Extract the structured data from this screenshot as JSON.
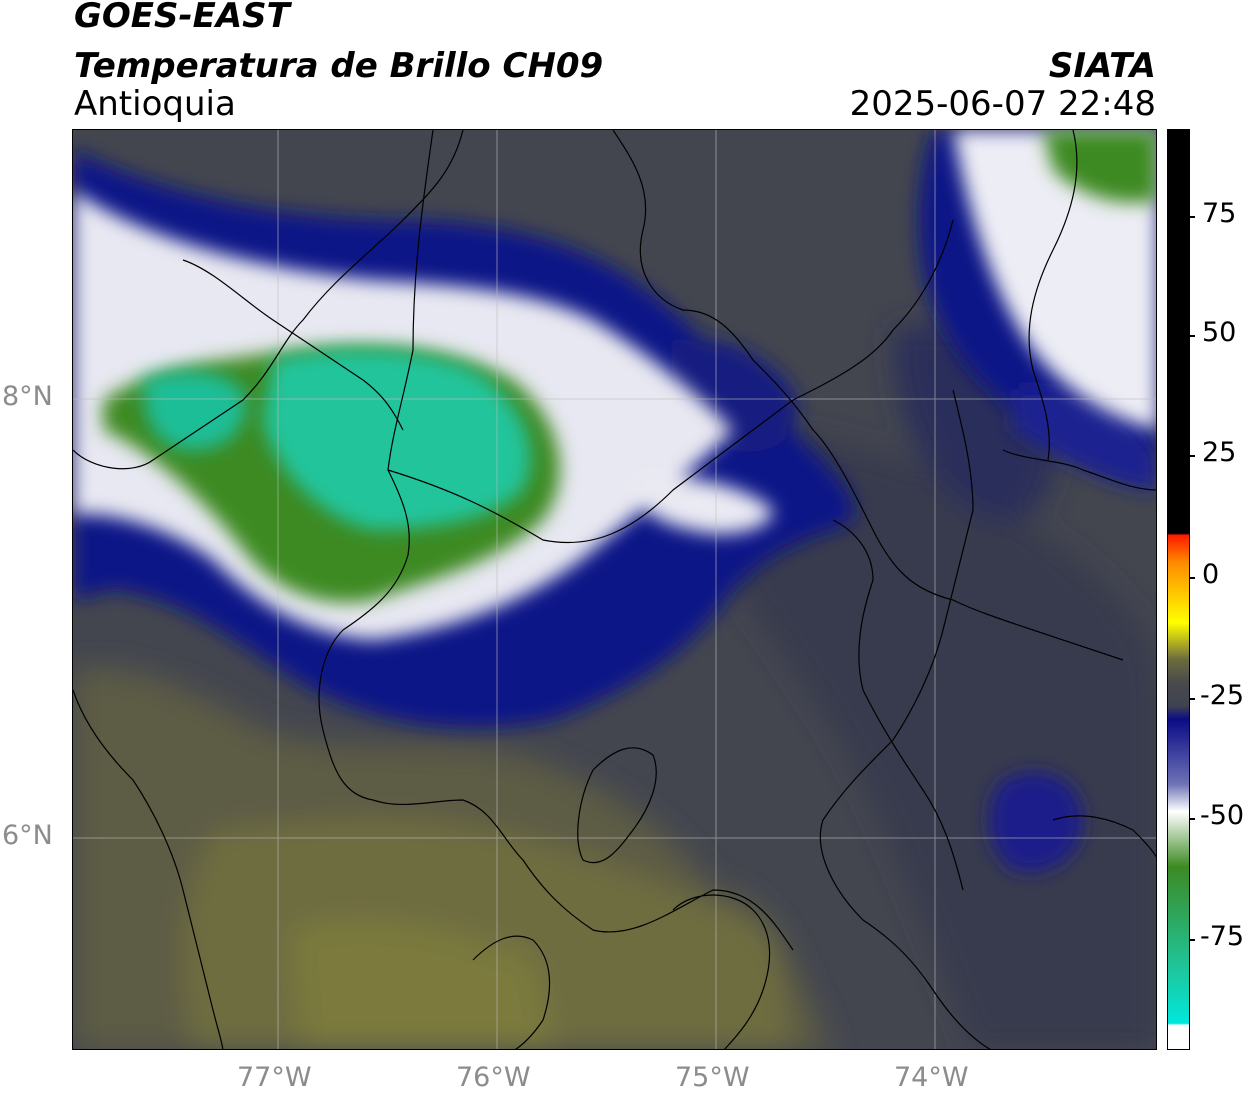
{
  "header": {
    "satellite": "GOES-EAST",
    "product": "Temperatura de Brillo CH09",
    "region": "Antioquia",
    "agency": "SIATA",
    "datetime": "2025-06-07 22:48"
  },
  "map": {
    "lat_labels": [
      "8°N",
      "6°N"
    ],
    "lon_labels": [
      "77°W",
      "76°W",
      "75°W",
      "74°W"
    ]
  },
  "colorbar": {
    "ticks": [
      "75",
      "50",
      "25",
      "0",
      "-25",
      "-50",
      "-75"
    ],
    "range": [
      -95,
      92
    ],
    "colors": {
      "warm_top": "#000000",
      "red": "#ff1a00",
      "orange": "#ff9a00",
      "yellow": "#ffff00",
      "olive": "#6b6b3e",
      "slate": "#3f4450",
      "navy": "#0b0b85",
      "white": "#ffffff",
      "green": "#3d8a23",
      "teal": "#1fc59a",
      "cyan": "#00e8dc"
    }
  }
}
